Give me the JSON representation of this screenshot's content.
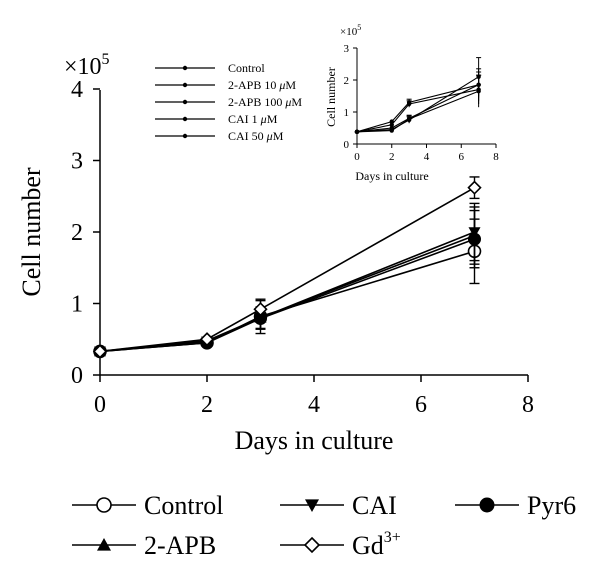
{
  "chart_data": [
    {
      "type": "line",
      "role": "main",
      "xlabel": "Days in culture",
      "ylabel": "Cell number",
      "y_multiplier": "×10",
      "y_multiplier_exp": "5",
      "xlim": [
        0,
        8
      ],
      "ylim": [
        0,
        4
      ],
      "x_ticks": [
        "0",
        "2",
        "4",
        "6",
        "8"
      ],
      "y_ticks": [
        "0",
        "1",
        "2",
        "3",
        "4"
      ],
      "grid": false,
      "legend_position": "bottom",
      "x": [
        0,
        2,
        3,
        7
      ],
      "series": [
        {
          "name": "Control",
          "marker": "open-circle",
          "values": [
            0.33,
            0.45,
            0.82,
            1.73
          ],
          "errors": [
            0.02,
            0.03,
            0.24,
            0.45
          ]
        },
        {
          "name": "CAI",
          "marker": "filled-triangle-down",
          "values": [
            0.33,
            0.47,
            0.8,
            2.0
          ],
          "errors": [
            0.02,
            0.03,
            0.15,
            0.4
          ]
        },
        {
          "name": "Pyr6",
          "marker": "filled-circle",
          "values": [
            0.33,
            0.45,
            0.79,
            1.9
          ],
          "errors": [
            0.02,
            0.03,
            0.15,
            0.4
          ]
        },
        {
          "name": "2-APB",
          "marker": "filled-triangle-up",
          "values": [
            0.33,
            0.48,
            0.8,
            1.95
          ],
          "errors": [
            0.02,
            0.03,
            0.15,
            0.4
          ]
        },
        {
          "name": "Gd",
          "name_sup": "3+",
          "marker": "open-diamond",
          "values": [
            0.33,
            0.5,
            0.92,
            2.62
          ],
          "errors": [
            0.02,
            0.03,
            0.12,
            0.15
          ]
        }
      ]
    },
    {
      "type": "line",
      "role": "inset",
      "xlabel": "Days in culture",
      "ylabel": "Cell number",
      "y_multiplier": "×10",
      "y_multiplier_exp": "5",
      "xlim": [
        0,
        8
      ],
      "ylim": [
        0,
        3
      ],
      "x_ticks": [
        "0",
        "2",
        "4",
        "6",
        "8"
      ],
      "y_ticks": [
        "0",
        "1",
        "2",
        "3"
      ],
      "grid": false,
      "legend_position": "top-left",
      "x": [
        0,
        2,
        3,
        7
      ],
      "series": [
        {
          "name": "Control",
          "prefix": "",
          "unit": "",
          "values": [
            0.38,
            0.5,
            0.8,
            1.85
          ],
          "errors": [
            0.02,
            0.05,
            0.1,
            0.4
          ]
        },
        {
          "name": "2-APB 10 ",
          "prefix": "μ",
          "unit": "M",
          "values": [
            0.38,
            0.7,
            1.3,
            1.85
          ],
          "errors": [
            0.02,
            0.05,
            0.1,
            0.5
          ]
        },
        {
          "name": "2-APB 100 ",
          "prefix": "μ",
          "unit": "M",
          "values": [
            0.38,
            0.6,
            1.25,
            1.7
          ],
          "errors": [
            0.02,
            0.05,
            0.1,
            0.45
          ]
        },
        {
          "name": "CAI 1 ",
          "prefix": "μ",
          "unit": "M",
          "values": [
            0.38,
            0.45,
            0.75,
            2.1
          ],
          "errors": [
            0.02,
            0.05,
            0.1,
            0.6
          ]
        },
        {
          "name": "CAI 50 ",
          "prefix": "μ",
          "unit": "M",
          "values": [
            0.38,
            0.42,
            0.78,
            1.65
          ],
          "errors": [
            0.02,
            0.05,
            0.1,
            0.5
          ]
        }
      ]
    }
  ]
}
